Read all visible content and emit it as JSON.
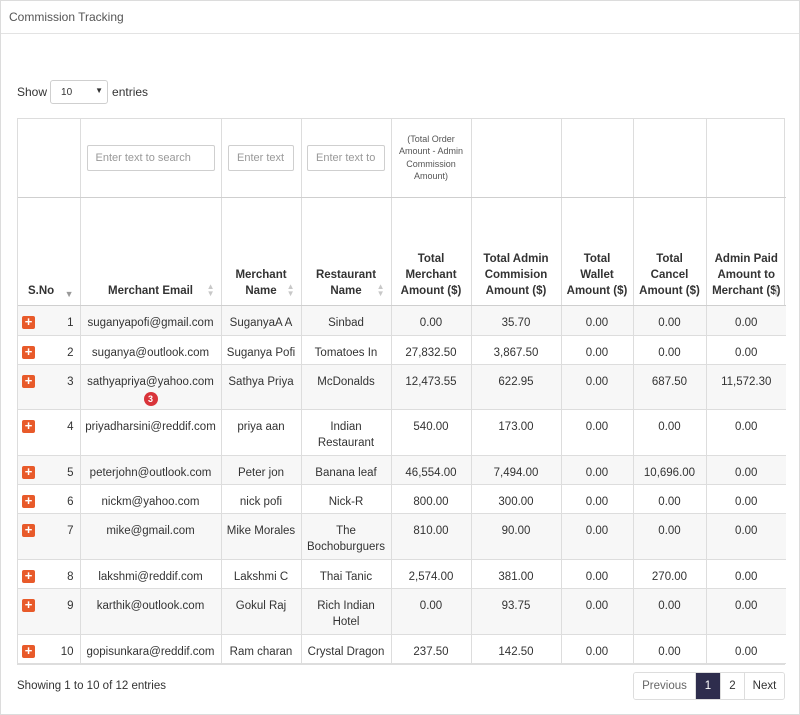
{
  "panel": {
    "title": "Commission Tracking"
  },
  "length": {
    "show_label": "Show",
    "value": "10",
    "entries_label": "entries"
  },
  "filters": {
    "email_placeholder": "Enter text to search",
    "merchant_placeholder": "Enter text",
    "restaurant_placeholder": "Enter text to",
    "note": "(Total Order Amount - Admin Commission Amount)"
  },
  "columns": {
    "sno": "S.No",
    "email": "Merchant Email",
    "merchant": "Merchant Name",
    "restaurant": "Restaurant Name",
    "total_merchant": "Total Merchant Amount ($)",
    "total_admin": "Total Admin Commision Amount ($)",
    "total_wallet": "Total Wallet Amount ($)",
    "total_cancel": "Total Cancel Amount ($)",
    "admin_paid": "Admin Paid Amount to Merchant ($)"
  },
  "rows": [
    {
      "sno": "1",
      "email": "suganyapofi@gmail.com",
      "merchant": "SuganyaA A",
      "restaurant": "Sinbad",
      "tm": "0.00",
      "ta": "35.70",
      "tw": "0.00",
      "tc": "0.00",
      "ap": "0.00"
    },
    {
      "sno": "2",
      "email": "suganya@outlook.com",
      "merchant": "Suganya Pofi",
      "restaurant": "Tomatoes In",
      "tm": "27,832.50",
      "ta": "3,867.50",
      "tw": "0.00",
      "tc": "0.00",
      "ap": "0.00"
    },
    {
      "sno": "3",
      "email": "sathyapriya@yahoo.com",
      "badge": "3",
      "merchant": "Sathya Priya",
      "restaurant": "McDonalds",
      "tm": "12,473.55",
      "ta": "622.95",
      "tw": "0.00",
      "tc": "687.50",
      "ap": "11,572.30"
    },
    {
      "sno": "4",
      "email": "priyadharsini@reddif.com",
      "merchant": "priya aan",
      "restaurant": "Indian Restaurant",
      "tm": "540.00",
      "ta": "173.00",
      "tw": "0.00",
      "tc": "0.00",
      "ap": "0.00"
    },
    {
      "sno": "5",
      "email": "peterjohn@outlook.com",
      "merchant": "Peter jon",
      "restaurant": "Banana leaf",
      "tm": "46,554.00",
      "ta": "7,494.00",
      "tw": "0.00",
      "tc": "10,696.00",
      "ap": "0.00"
    },
    {
      "sno": "6",
      "email": "nickm@yahoo.com",
      "merchant": "nick pofi",
      "restaurant": "Nick-R",
      "tm": "800.00",
      "ta": "300.00",
      "tw": "0.00",
      "tc": "0.00",
      "ap": "0.00"
    },
    {
      "sno": "7",
      "email": "mike@gmail.com",
      "merchant": "Mike Morales",
      "restaurant": "The Bochoburguers",
      "tm": "810.00",
      "ta": "90.00",
      "tw": "0.00",
      "tc": "0.00",
      "ap": "0.00"
    },
    {
      "sno": "8",
      "email": "lakshmi@reddif.com",
      "merchant": "Lakshmi C",
      "restaurant": "Thai Tanic",
      "tm": "2,574.00",
      "ta": "381.00",
      "tw": "0.00",
      "tc": "270.00",
      "ap": "0.00"
    },
    {
      "sno": "9",
      "email": "karthik@outlook.com",
      "merchant": "Gokul Raj",
      "restaurant": "Rich Indian Hotel",
      "tm": "0.00",
      "ta": "93.75",
      "tw": "0.00",
      "tc": "0.00",
      "ap": "0.00"
    },
    {
      "sno": "10",
      "email": "gopisunkara@reddif.com",
      "merchant": "Ram charan",
      "restaurant": "Crystal Dragon",
      "tm": "237.50",
      "ta": "142.50",
      "tw": "0.00",
      "tc": "0.00",
      "ap": "0.00"
    }
  ],
  "footer": {
    "info": "Showing 1 to 10 of 12 entries"
  },
  "pagination": {
    "previous": "Previous",
    "page1": "1",
    "page2": "2",
    "next": "Next"
  },
  "colors": {
    "accent": "#e85a2a",
    "active_page": "#2e2d4d",
    "badge": "#d9343a"
  }
}
